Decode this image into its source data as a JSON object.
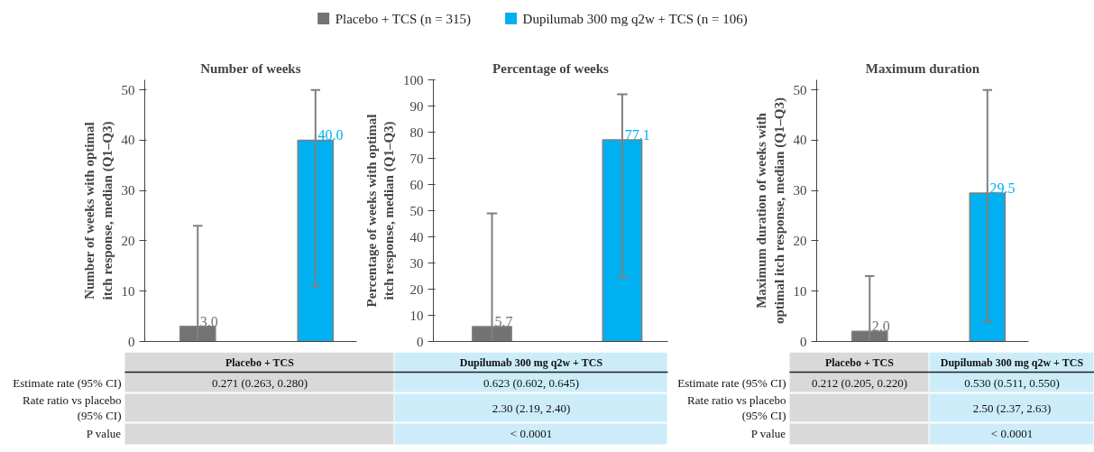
{
  "chart_data": [
    {
      "type": "bar",
      "title": "Number of weeks",
      "ylabel": "Number of weeks with optimal\nitch response, median (Q1–Q3)",
      "categories": [
        null,
        null
      ],
      "ylim": [
        0,
        52
      ],
      "yticks": [
        0,
        10,
        20,
        30,
        40,
        50
      ],
      "tick_labels": "y",
      "legend": "top",
      "series": [
        {
          "name": "Placebo + TCS (n = 315)",
          "color": "#737373",
          "values": [
            3.0,
            null
          ],
          "value_labels": [
            "3.0",
            null
          ],
          "errors": [
            [
              0,
              23
            ],
            null
          ]
        },
        {
          "name": "Dupilumab 300 mg q2w + TCS (n = 106)",
          "color": "#00b0f0",
          "values": [
            null,
            40.0
          ],
          "value_labels": [
            null,
            "40.0"
          ],
          "errors": [
            null,
            [
              11,
              50
            ]
          ]
        }
      ]
    },
    {
      "type": "bar",
      "title": "Percentage of weeks",
      "ylabel": "Percentage of weeks with optimal\nitch response, median (Q1–Q3)",
      "categories": [
        null,
        null
      ],
      "ylim": [
        0,
        100
      ],
      "yticks": [
        0,
        10,
        20,
        30,
        40,
        50,
        60,
        70,
        80,
        90,
        100
      ],
      "tick_labels": "y",
      "series": [
        {
          "color": "#737373",
          "values": [
            5.7,
            null
          ],
          "value_labels": [
            "5.7",
            null
          ],
          "errors": [
            [
              0,
              49
            ],
            null
          ]
        },
        {
          "color": "#00b0f0",
          "values": [
            null,
            77.1
          ],
          "value_labels": [
            null,
            "77.1"
          ],
          "errors": [
            null,
            [
              24.5,
              94.5
            ]
          ]
        }
      ]
    },
    {
      "type": "bar",
      "title": "Maximum duration",
      "ylabel": "Maximum duration of weeks with\noptimal itch response, median (Q1–Q3)",
      "categories": [
        null,
        null
      ],
      "ylim": [
        0,
        52
      ],
      "yticks": [
        0,
        10,
        20,
        30,
        40,
        50
      ],
      "tick_labels": "y",
      "series": [
        {
          "color": "#737373",
          "values": [
            2.0,
            null
          ],
          "value_labels": [
            "2.0",
            null
          ],
          "errors": [
            [
              0,
              13
            ],
            null
          ]
        },
        {
          "color": "#00b0f0",
          "values": [
            null,
            29.5
          ],
          "value_labels": [
            null,
            "29.5"
          ],
          "errors": [
            null,
            [
              4,
              50
            ]
          ]
        }
      ]
    },
    {
      "type": "other",
      "categories": [
        "Placebo + TCS",
        "Dupilumab 300 mg q2w + TCS"
      ],
      "y_categories": [
        "Estimate rate (95% CI)",
        "Rate ratio vs placebo\n(95% CI)",
        "P value"
      ],
      "colors": [
        "#d9d9d9",
        "#ccecf9"
      ],
      "cell_labels": [
        [
          "0.271 (0.263, 0.280)",
          "0.623 (0.602, 0.645)"
        ],
        [
          null,
          "2.30 (2.19, 2.40)"
        ],
        [
          null,
          "< 0.0001"
        ]
      ]
    },
    {
      "type": "other",
      "categories": [
        "Placebo + TCS",
        "Dupilumab 300 mg q2w + TCS"
      ],
      "y_categories": [
        "Estimate rate (95% CI)",
        "Rate ratio vs placebo\n(95% CI)",
        "P value"
      ],
      "colors": [
        "#d9d9d9",
        "#ccecf9"
      ],
      "cell_labels": [
        [
          "0.212 (0.205, 0.220)",
          "0.530 (0.511, 0.550)"
        ],
        [
          null,
          "2.50 (2.37, 2.63)"
        ],
        [
          null,
          "< 0.0001"
        ]
      ]
    }
  ]
}
